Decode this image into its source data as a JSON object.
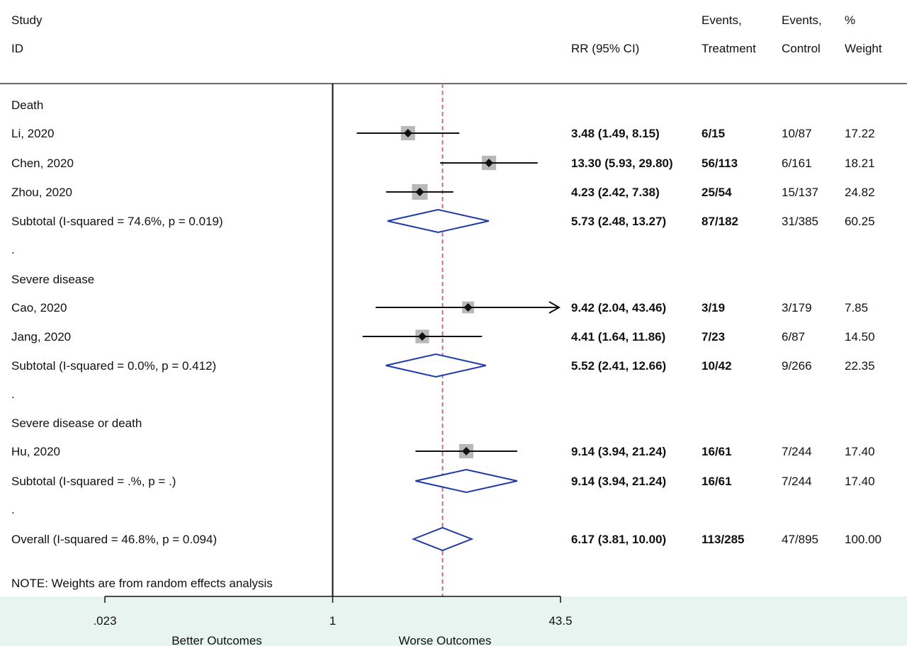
{
  "header": {
    "study": "Study",
    "id": "ID",
    "rr": "RR (95% CI)",
    "events_t_1": "Events,",
    "events_t_2": "Treatment",
    "events_c_1": "Events,",
    "events_c_2": "Control",
    "weight_1": "%",
    "weight_2": "Weight"
  },
  "note": "NOTE: Weights are from random effects analysis",
  "axis": {
    "ticks": [
      {
        "value": 0.023,
        "label": ".023"
      },
      {
        "value": 1,
        "label": "1"
      },
      {
        "value": 43.5,
        "label": "43.5"
      }
    ],
    "left_label": "Better Outcomes",
    "right_label": "Worse Outcomes",
    "xlim": [
      0.023,
      43.5
    ],
    "scale": "log"
  },
  "colors": {
    "line": "#111111",
    "diamond": "#1f3aa8",
    "box": "#b8b8b8",
    "overall_line": "#c07090",
    "axis_band": "#e8f4ef"
  },
  "chart_data": {
    "type": "forest",
    "null_value": 1,
    "overall_estimate": 6.17,
    "rows": [
      {
        "kind": "group",
        "label": "Death"
      },
      {
        "kind": "study",
        "label": "Li, 2020",
        "rr": 3.48,
        "lo": 1.49,
        "hi": 8.15,
        "ci_text": "3.48 (1.49, 8.15)",
        "events_t": "6/15",
        "events_c": "10/87",
        "weight": "17.22"
      },
      {
        "kind": "study",
        "label": "Chen, 2020",
        "rr": 13.3,
        "lo": 5.93,
        "hi": 29.8,
        "ci_text": "13.30 (5.93, 29.80)",
        "events_t": "56/113",
        "events_c": "6/161",
        "weight": "18.21"
      },
      {
        "kind": "study",
        "label": "Zhou, 2020",
        "rr": 4.23,
        "lo": 2.42,
        "hi": 7.38,
        "ci_text": "4.23 (2.42, 7.38)",
        "events_t": "25/54",
        "events_c": "15/137",
        "weight": "24.82"
      },
      {
        "kind": "subtotal",
        "label": "Subtotal  (I-squared = 74.6%, p = 0.019)",
        "rr": 5.73,
        "lo": 2.48,
        "hi": 13.27,
        "ci_text": "5.73 (2.48, 13.27)",
        "events_t": "87/182",
        "events_c": "31/385",
        "weight": "60.25"
      },
      {
        "kind": "spacer",
        "label": "."
      },
      {
        "kind": "group",
        "label": "Severe disease"
      },
      {
        "kind": "study",
        "label": "Cao, 2020",
        "rr": 9.42,
        "lo": 2.04,
        "hi": 43.46,
        "ci_text": "9.42 (2.04, 43.46)",
        "events_t": "3/19",
        "events_c": "3/179",
        "weight": "7.85",
        "arrow": true
      },
      {
        "kind": "study",
        "label": "Jang, 2020",
        "rr": 4.41,
        "lo": 1.64,
        "hi": 11.86,
        "ci_text": "4.41 (1.64, 11.86)",
        "events_t": "7/23",
        "events_c": "6/87",
        "weight": "14.50"
      },
      {
        "kind": "subtotal",
        "label": "Subtotal  (I-squared = 0.0%, p = 0.412)",
        "rr": 5.52,
        "lo": 2.41,
        "hi": 12.66,
        "ci_text": "5.52 (2.41, 12.66)",
        "events_t": "10/42",
        "events_c": "9/266",
        "weight": "22.35"
      },
      {
        "kind": "spacer",
        "label": "."
      },
      {
        "kind": "group",
        "label": "Severe disease or death"
      },
      {
        "kind": "study",
        "label": "Hu, 2020",
        "rr": 9.14,
        "lo": 3.94,
        "hi": 21.24,
        "ci_text": "9.14 (3.94, 21.24)",
        "events_t": "16/61",
        "events_c": "7/244",
        "weight": "17.40"
      },
      {
        "kind": "subtotal",
        "label": "Subtotal  (I-squared = .%, p = .)",
        "rr": 9.14,
        "lo": 3.94,
        "hi": 21.24,
        "ci_text": "9.14 (3.94, 21.24)",
        "events_t": "16/61",
        "events_c": "7/244",
        "weight": "17.40"
      },
      {
        "kind": "spacer",
        "label": "."
      },
      {
        "kind": "overall",
        "label": "Overall  (I-squared = 46.8%, p = 0.094)",
        "rr": 6.17,
        "lo": 3.81,
        "hi": 10.0,
        "ci_text": "6.17 (3.81, 10.00)",
        "events_t": "113/285",
        "events_c": "47/895",
        "weight": "100.00"
      }
    ]
  }
}
